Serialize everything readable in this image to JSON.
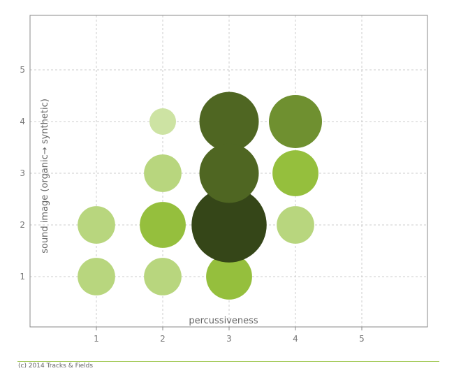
{
  "chart_data": {
    "type": "scatter",
    "subtype": "bubble",
    "xlabel": "percussiveness",
    "ylabel": "sound image (organic→ synthetic)",
    "xlim": [
      0,
      6
    ],
    "ylim": [
      0,
      6
    ],
    "xticks": [
      1,
      2,
      3,
      4,
      5
    ],
    "yticks": [
      1,
      2,
      3,
      4,
      5
    ],
    "grid": true,
    "points": [
      {
        "x": 1,
        "y": 1,
        "size": 2,
        "color": "#b8d67e"
      },
      {
        "x": 1,
        "y": 2,
        "size": 2,
        "color": "#b8d67e"
      },
      {
        "x": 2,
        "y": 1,
        "size": 2,
        "color": "#b8d67e"
      },
      {
        "x": 2,
        "y": 2,
        "size": 3,
        "color": "#95bf3d"
      },
      {
        "x": 2,
        "y": 3,
        "size": 2,
        "color": "#b8d67e"
      },
      {
        "x": 2,
        "y": 4,
        "size": 1,
        "color": "#cde3a3"
      },
      {
        "x": 3,
        "y": 1,
        "size": 3,
        "color": "#95bf3d"
      },
      {
        "x": 3,
        "y": 2,
        "size": 8,
        "color": "#354618"
      },
      {
        "x": 3,
        "y": 4,
        "size": 5,
        "color": "#4f6622"
      },
      {
        "x": 3,
        "y": 3,
        "size": 5,
        "color": "#4f6622"
      },
      {
        "x": 4,
        "y": 2,
        "size": 2,
        "color": "#b8d67e"
      },
      {
        "x": 4,
        "y": 3,
        "size": 3,
        "color": "#95bf3d"
      },
      {
        "x": 4,
        "y": 4,
        "size": 4,
        "color": "#6f9030"
      }
    ]
  },
  "footer": "(c) 2014 Tracks & Fields"
}
